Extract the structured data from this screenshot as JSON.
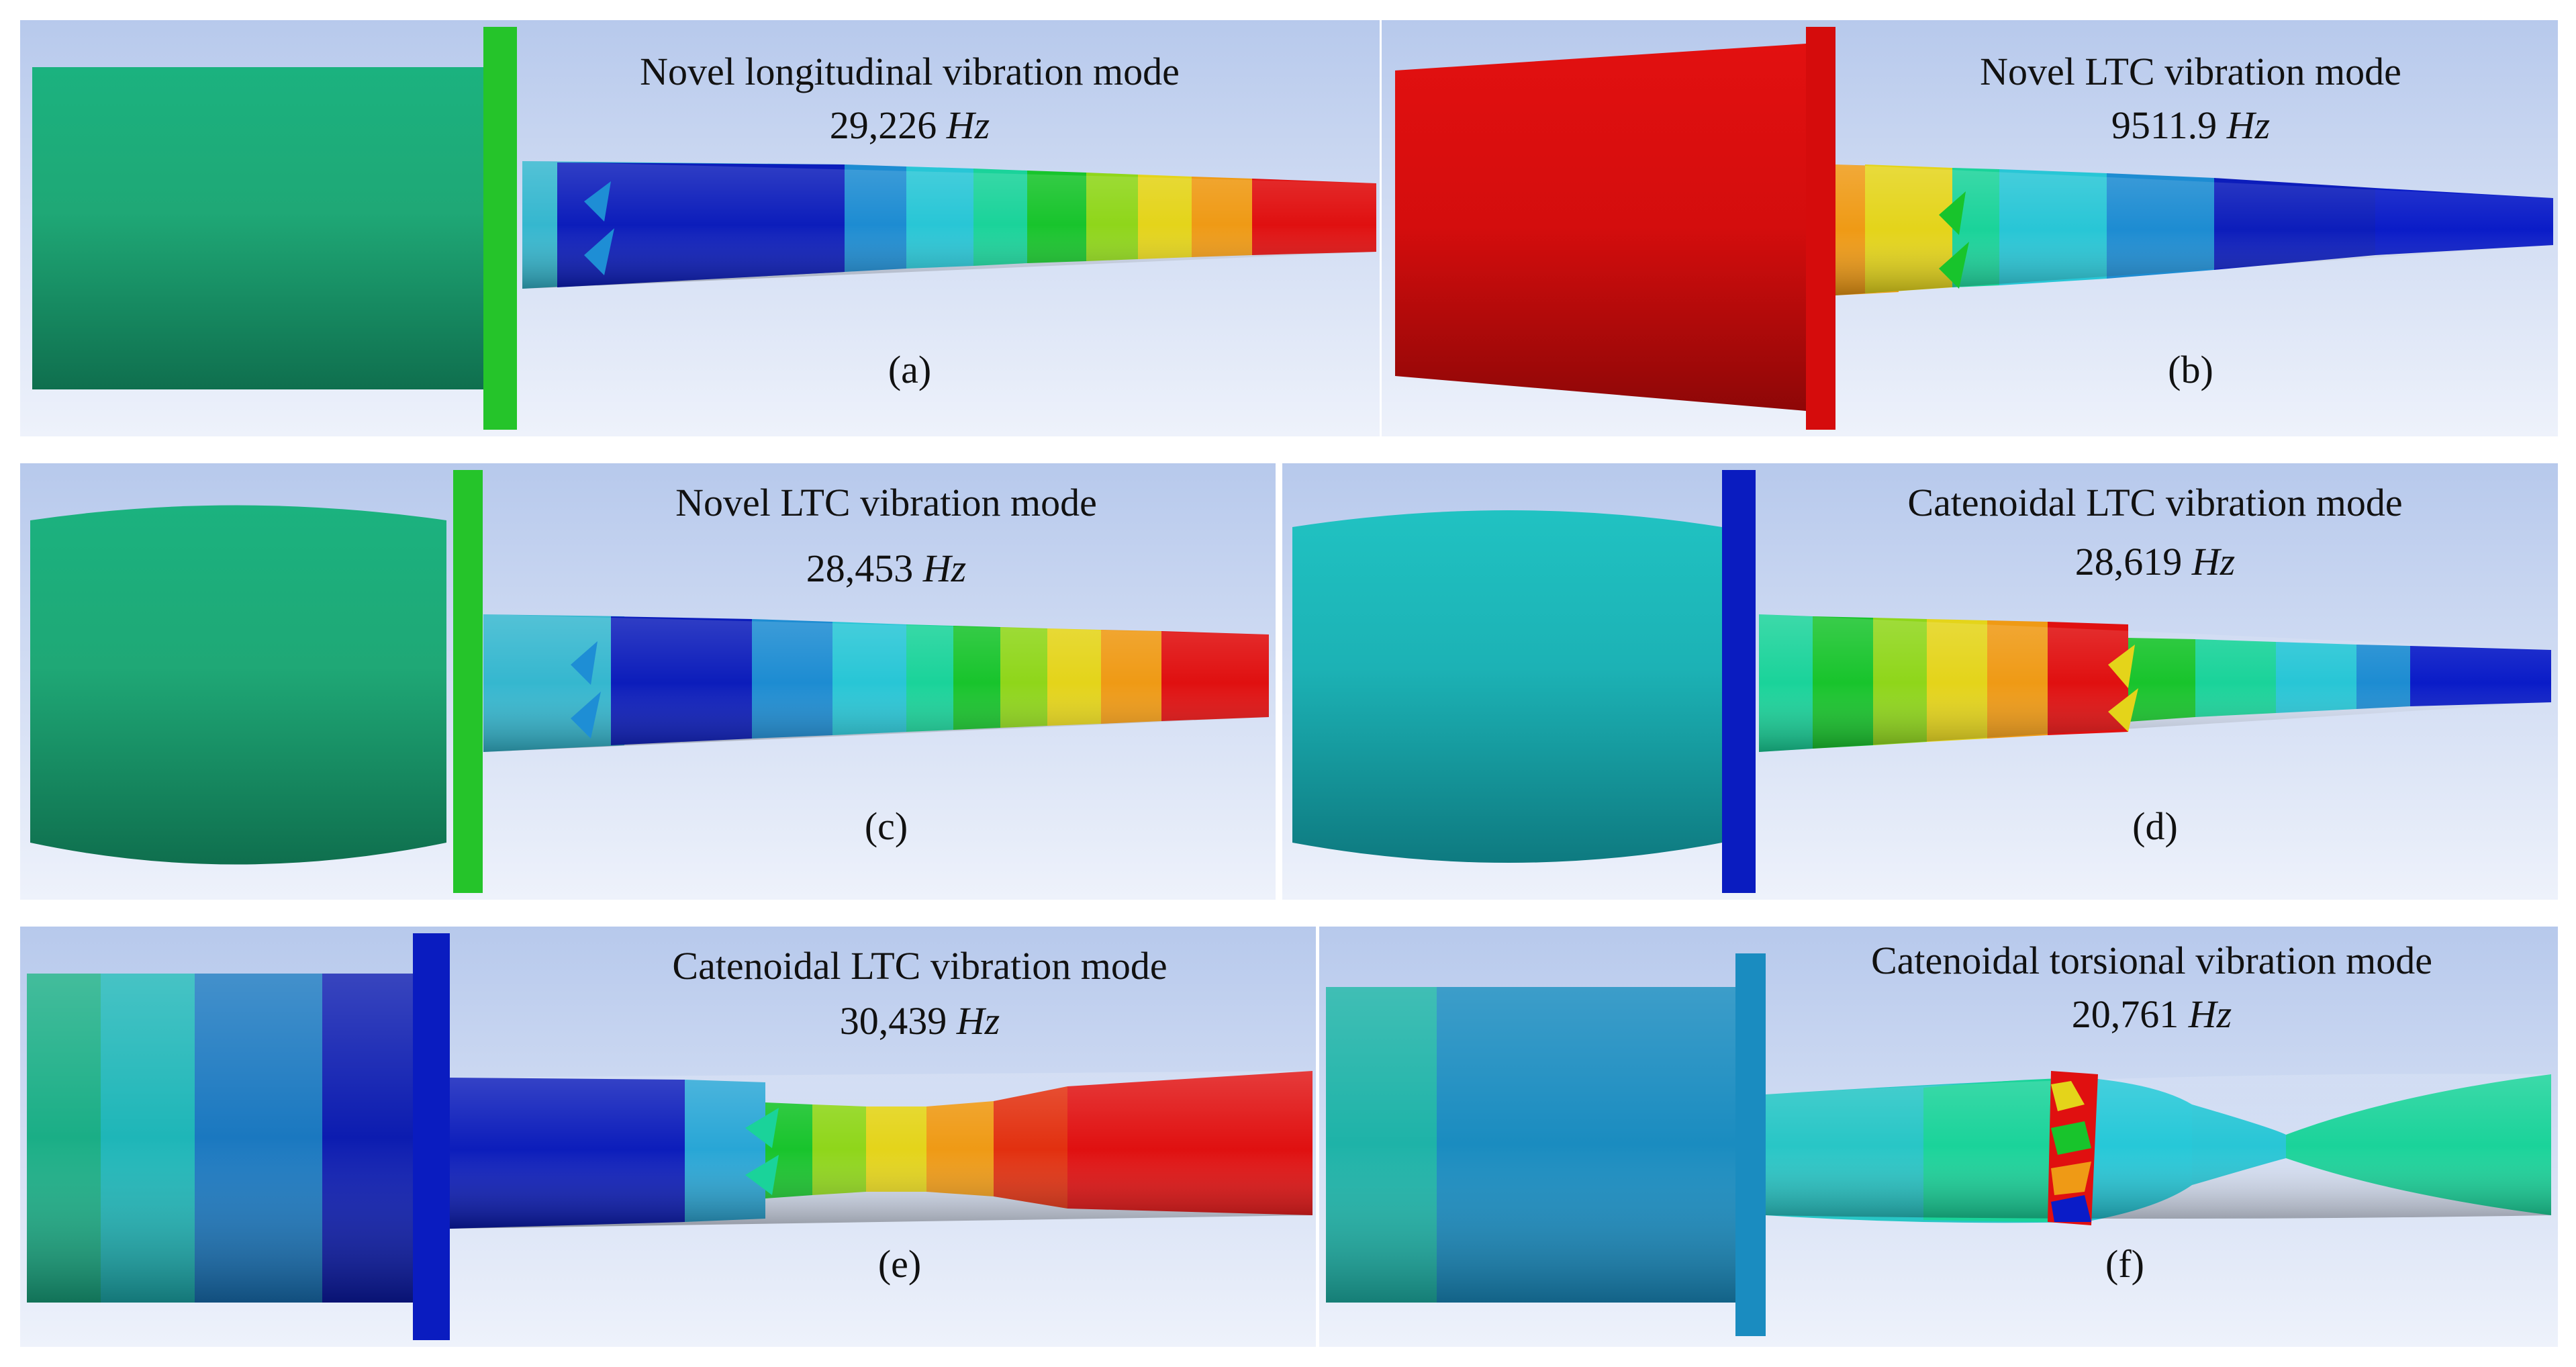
{
  "panels": [
    {
      "id": "a",
      "title": "Novel longitudinal vibration mode",
      "frequency": "29,226",
      "unit": "Hz",
      "label": "(a)"
    },
    {
      "id": "b",
      "title": "Novel LTC vibration mode",
      "frequency": "9511.9",
      "unit": "Hz",
      "label": "(b)"
    },
    {
      "id": "c",
      "title": "Novel LTC vibration mode",
      "frequency": "28,453",
      "unit": "Hz",
      "label": "(c)"
    },
    {
      "id": "d",
      "title": "Catenoidal LTC vibration mode",
      "frequency": "28,619",
      "unit": "Hz",
      "label": "(d)"
    },
    {
      "id": "e",
      "title": "Catenoidal LTC vibration mode",
      "frequency": "30,439",
      "unit": "Hz",
      "label": "(e)"
    },
    {
      "id": "f",
      "title": "Catenoidal torsional vibration mode",
      "frequency": "20,761",
      "unit": "Hz",
      "label": "(f)"
    }
  ],
  "colors": {
    "background_top": "#b7c9ec",
    "background_bottom": "#eef2fb",
    "deep_blue": "#0a1cc8",
    "blue": "#1a7fd0",
    "cyan": "#26c8d8",
    "green_cyan": "#1ad49c",
    "green": "#17c52a",
    "yellow_green": "#a8d81a",
    "yellow": "#e4d41a",
    "orange": "#ef9a15",
    "red": "#e01010"
  }
}
